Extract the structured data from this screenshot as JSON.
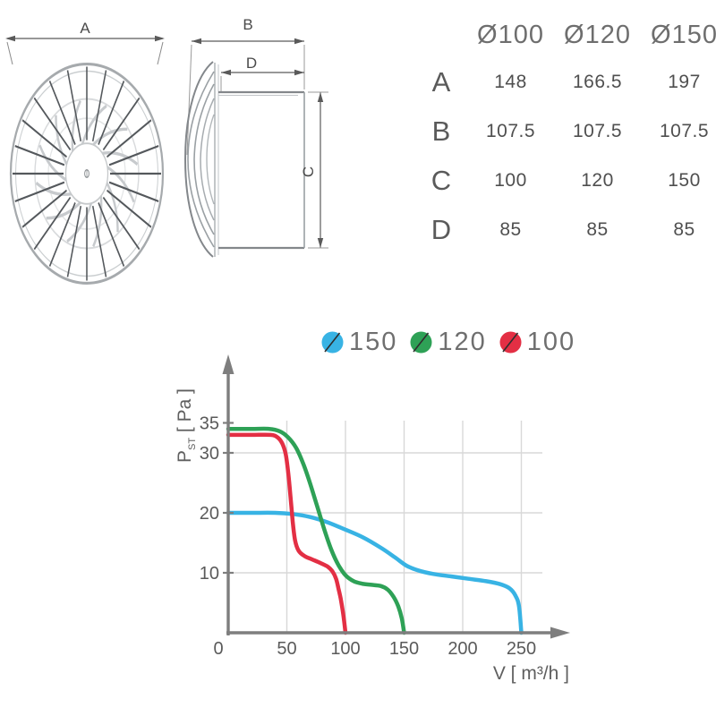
{
  "drawings": {
    "front_view": {
      "dim_a_label": "A"
    },
    "side_view": {
      "dim_b_label": "B",
      "dim_c_label": "C",
      "dim_d_label": "D"
    }
  },
  "table": {
    "col_headers": [
      "Ø100",
      "Ø120",
      "Ø150"
    ],
    "rows": [
      {
        "label": "A",
        "values": [
          "148",
          "166.5",
          "197"
        ]
      },
      {
        "label": "B",
        "values": [
          "107.5",
          "107.5",
          "107.5"
        ]
      },
      {
        "label": "C",
        "values": [
          "100",
          "120",
          "150"
        ]
      },
      {
        "label": "D",
        "values": [
          "85",
          "85",
          "85"
        ]
      }
    ]
  },
  "chart": {
    "legend": [
      {
        "label": "150",
        "color": "#38b3e4"
      },
      {
        "label": "120",
        "color": "#2ea156"
      },
      {
        "label": "100",
        "color": "#e32f44"
      }
    ],
    "y_axis": {
      "main": "P",
      "sub": "ST",
      "unit": " [ Pa ]"
    },
    "x_axis_label": "V [ m³/h ]"
  },
  "chart_data": {
    "type": "line",
    "title": "",
    "xlabel": "V [ m³/h ]",
    "ylabel": "PST [ Pa ]",
    "xlim": [
      0,
      285
    ],
    "ylim": [
      0,
      45
    ],
    "x_ticks": [
      0,
      50,
      100,
      150,
      200,
      250
    ],
    "y_ticks": [
      35,
      30,
      20,
      10
    ],
    "y_gridlines": [
      10,
      20,
      30
    ],
    "grid": true,
    "legend_position": "top",
    "draw_order": [
      0,
      2,
      1
    ],
    "series": [
      {
        "name": "150",
        "color": "#38b3e4",
        "points": [
          [
            0,
            20
          ],
          [
            20,
            20
          ],
          [
            40,
            20
          ],
          [
            55,
            19.8
          ],
          [
            70,
            19.3
          ],
          [
            85,
            18.4
          ],
          [
            100,
            17.2
          ],
          [
            115,
            15.9
          ],
          [
            130,
            14.2
          ],
          [
            142,
            12.6
          ],
          [
            152,
            11.2
          ],
          [
            162,
            10.4
          ],
          [
            175,
            9.8
          ],
          [
            190,
            9.4
          ],
          [
            205,
            9
          ],
          [
            220,
            8.6
          ],
          [
            232,
            8.1
          ],
          [
            240,
            7.4
          ],
          [
            245,
            6.2
          ],
          [
            248,
            4.4
          ],
          [
            250,
            0
          ]
        ]
      },
      {
        "name": "120",
        "color": "#2ea156",
        "points": [
          [
            0,
            34
          ],
          [
            20,
            34
          ],
          [
            35,
            34
          ],
          [
            44,
            33.6
          ],
          [
            51,
            32.6
          ],
          [
            58,
            30.8
          ],
          [
            64,
            28.2
          ],
          [
            70,
            24.8
          ],
          [
            76,
            21
          ],
          [
            82,
            17.2
          ],
          [
            88,
            13.8
          ],
          [
            94,
            11.3
          ],
          [
            100,
            9.6
          ],
          [
            107,
            8.6
          ],
          [
            114,
            8.2
          ],
          [
            122,
            8
          ],
          [
            130,
            7.8
          ],
          [
            136,
            7.2
          ],
          [
            141,
            6
          ],
          [
            145,
            4.4
          ],
          [
            148,
            2.4
          ],
          [
            150,
            0
          ]
        ]
      },
      {
        "name": "100",
        "color": "#e32f44",
        "points": [
          [
            0,
            33
          ],
          [
            20,
            33
          ],
          [
            36,
            33
          ],
          [
            42,
            32.6
          ],
          [
            46,
            31.6
          ],
          [
            49,
            29.8
          ],
          [
            51,
            27
          ],
          [
            53,
            23
          ],
          [
            55,
            18.6
          ],
          [
            57,
            15.4
          ],
          [
            60,
            13.7
          ],
          [
            65,
            12.8
          ],
          [
            72,
            12.2
          ],
          [
            79,
            11.6
          ],
          [
            85,
            11
          ],
          [
            89,
            10.2
          ],
          [
            92,
            9
          ],
          [
            94,
            7.4
          ],
          [
            96,
            5.6
          ],
          [
            98,
            3.2
          ],
          [
            100,
            0
          ]
        ]
      }
    ]
  }
}
